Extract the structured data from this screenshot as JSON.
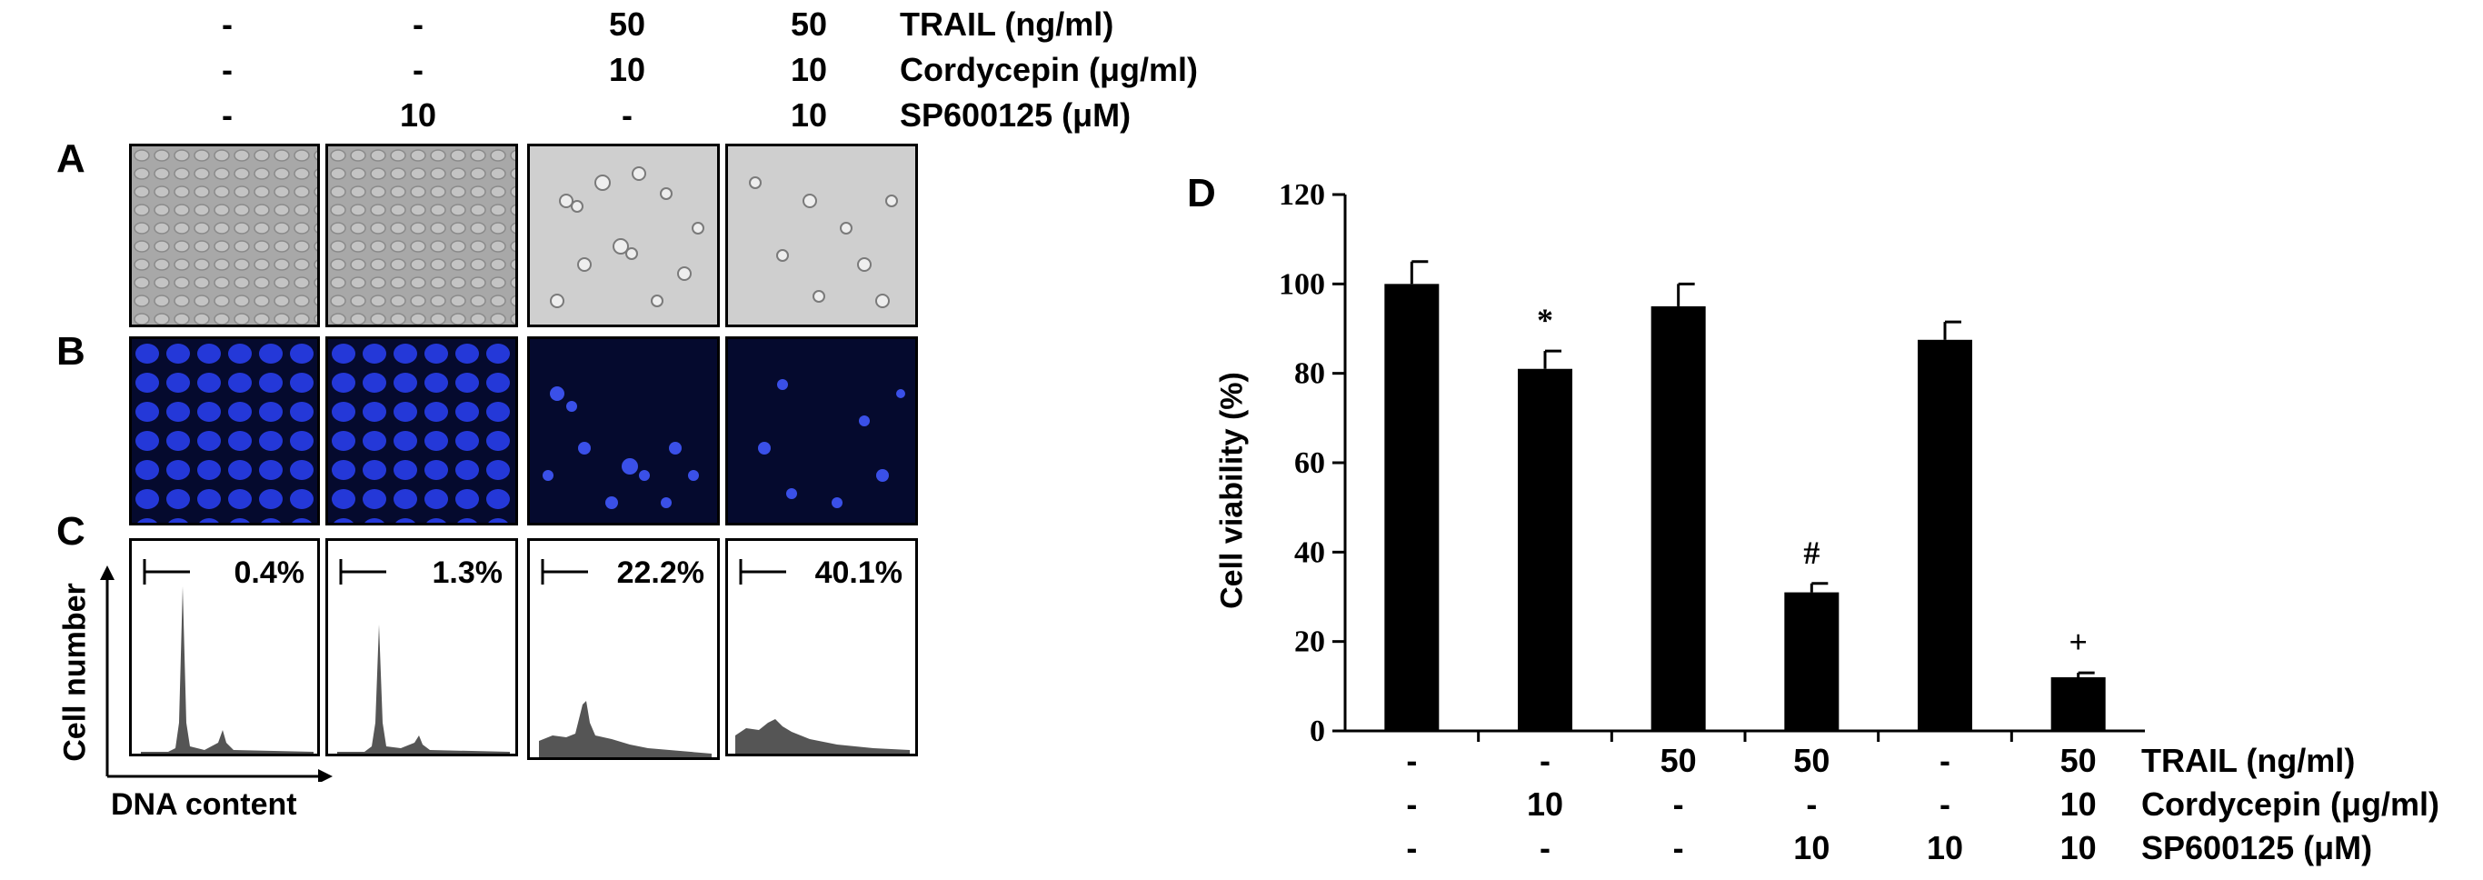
{
  "header_rows": [
    {
      "label": "TRAIL (ng/ml)",
      "values": [
        "-",
        "-",
        "50",
        "50"
      ]
    },
    {
      "label": "Cordycepin (μg/ml)",
      "values": [
        "-",
        "-",
        "10",
        "10"
      ]
    },
    {
      "label": "SP600125 (μM)",
      "values": [
        "-",
        "10",
        "-",
        "10"
      ]
    }
  ],
  "panel_labels": {
    "a": "A",
    "b": "B",
    "c": "C",
    "d": "D"
  },
  "flow": {
    "percentages": [
      "0.4%",
      "1.3%",
      "22.2%",
      "40.1%"
    ],
    "y_axis_label": "Cell number",
    "x_axis_label": "DNA content"
  },
  "colors": {
    "bar": "#000000",
    "microscopy_bright": "#a8a8a8",
    "microscopy_blue": "#2438d8",
    "histogram": "#555555"
  },
  "chart_data": {
    "type": "bar",
    "ylabel": "Cell viability (%)",
    "xlabel": "",
    "ylim": [
      0,
      120
    ],
    "yticks": [
      0,
      20,
      40,
      60,
      80,
      100,
      120
    ],
    "values": [
      100,
      81,
      95,
      31,
      87.5,
      12
    ],
    "errors": [
      5,
      4,
      5,
      2,
      4,
      1
    ],
    "annotations": [
      "",
      "*",
      "",
      "#",
      "",
      "+"
    ],
    "treatments": [
      {
        "label": "TRAIL (ng/ml)",
        "values": [
          "-",
          "-",
          "50",
          "50",
          "-",
          "50"
        ]
      },
      {
        "label": "Cordycepin (μg/ml)",
        "values": [
          "-",
          "10",
          "-",
          "-",
          "-",
          "10"
        ]
      },
      {
        "label": "SP600125 (μM)",
        "values": [
          "-",
          "-",
          "-",
          "10",
          "10",
          "10"
        ]
      }
    ],
    "grid": false
  }
}
